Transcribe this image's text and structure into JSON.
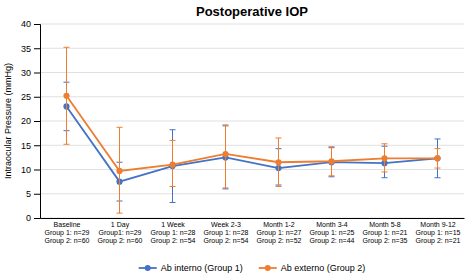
{
  "chart_data": {
    "type": "line",
    "title": "Postoperative IOP",
    "ylabel": "Intraocular Pressure (mmHg)",
    "categories": [
      "Baseline\nGroup 1: n=29\nGroup 2: n=60",
      "1 Day\nGroup1: n=29\nGroup 2: n=60",
      "1 Week\nGroup 1: n=28\nGroup 2: n=54",
      "Week 2-3\nGroup 1: n=28\nGroup 2: n=54",
      "Month 1-2\nGroup 1: n=27\nGroup 2: n=52",
      "Month 3-4\nGroup 1: n=25\nGroup 2: n=44",
      "Month 5-8\nGroup 1: n=21\nGroup 2: n=35",
      "Month 9-12\nGroup 1: n=15\nGroup 2: n=21"
    ],
    "series": [
      {
        "name": "Ab interno (Group 1)",
        "color": "#4472c4",
        "values": [
          23,
          7.5,
          10.7,
          12.5,
          10.3,
          11.5,
          11.3,
          12.3
        ],
        "err_upper": [
          5,
          4,
          7.5,
          6.5,
          4,
          3,
          3.5,
          4
        ],
        "err_lower": [
          5,
          4,
          7.5,
          6.5,
          3.5,
          3,
          3,
          4
        ]
      },
      {
        "name": "Ab externo (Group 2)",
        "color": "#ed7d31",
        "values": [
          25.2,
          9.7,
          11,
          13.2,
          11.5,
          11.7,
          12.3,
          12.3
        ],
        "err_upper": [
          10,
          9,
          5,
          6,
          5,
          3,
          3,
          2
        ],
        "err_lower": [
          10,
          8.7,
          4.5,
          7,
          5,
          3,
          2.8,
          2
        ]
      }
    ],
    "ylim": [
      0,
      40
    ],
    "yticks": [
      0,
      5,
      10,
      15,
      20,
      25,
      30,
      35,
      40
    ],
    "grid": true,
    "legend": "bottom",
    "marker": "circle"
  }
}
